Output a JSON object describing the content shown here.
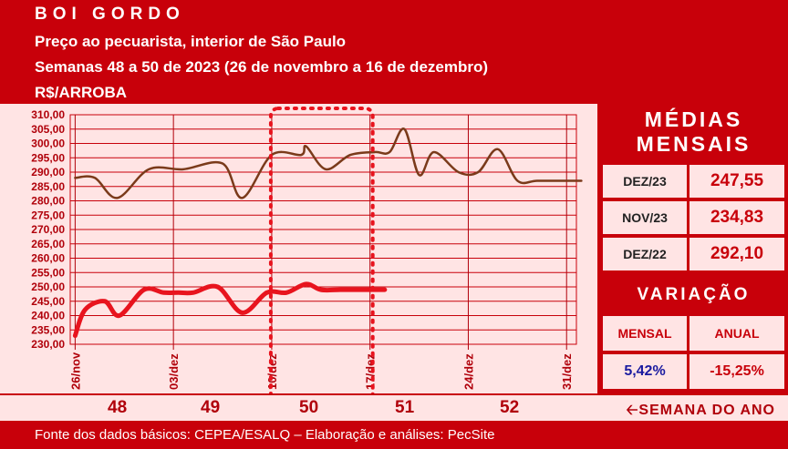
{
  "header": {
    "title": "BOI GORDO",
    "subtitle": "Preço ao pecuarista, interior de São Paulo",
    "period": "Semanas 48 a 50 de 2023 (26 de novembro a 16 de dezembro)",
    "unit": "R$/ARROBA"
  },
  "panel": {
    "medias_title_1": "MÉDIAS",
    "medias_title_2": "MENSAIS",
    "medias": [
      {
        "label": "DEZ/23",
        "value": "247,55"
      },
      {
        "label": "NOV/23",
        "value": "234,83"
      },
      {
        "label": "DEZ/22",
        "value": "292,10"
      }
    ],
    "variacao_title": "VARIAÇÃO",
    "variacao_headers": [
      "MENSAL",
      "ANUAL"
    ],
    "variacao_values": [
      "5,42%",
      "-15,25%"
    ],
    "colors": {
      "mensal": "#1a1aa0",
      "anual": "#c8000a",
      "value": "#c8000a"
    }
  },
  "weeks": {
    "numbers": [
      "48",
      "49",
      "50",
      "51",
      "52"
    ],
    "label": "SEMANA DO ANO",
    "arrow_icon": "arrow-left-icon"
  },
  "footer": "Fonte dos dados básicos: CEPEA/ESALQ – Elaboração e análises: PecSite",
  "chart_data": {
    "type": "line",
    "ylim": [
      230,
      310
    ],
    "yticks": [
      "230,00",
      "235,00",
      "240,00",
      "245,00",
      "250,00",
      "255,00",
      "260,00",
      "265,00",
      "270,00",
      "275,00",
      "280,00",
      "285,00",
      "290,00",
      "295,00",
      "300,00",
      "305,00",
      "310,00"
    ],
    "x_tick_labels": [
      "26/nov",
      "03/dez",
      "10/dez",
      "17/dez",
      "24/dez",
      "31/dez"
    ],
    "x_tick_positions": [
      0,
      1,
      2,
      3,
      4,
      5
    ],
    "series": [
      {
        "color": "#7a3a1a",
        "width": 2.5,
        "x": [
          0,
          0.2,
          0.43,
          0.75,
          1.1,
          1.5,
          1.7,
          2.0,
          2.3,
          2.35,
          2.55,
          2.8,
          3.05,
          3.2,
          3.35,
          3.5,
          3.65,
          3.9,
          4.1,
          4.3,
          4.5,
          4.7,
          5.0,
          5.15
        ],
        "y": [
          288,
          288,
          281,
          291,
          291,
          293,
          281,
          296,
          296,
          299,
          291,
          296,
          297,
          297,
          305,
          289,
          297,
          290,
          290,
          298,
          287,
          287,
          287,
          287
        ]
      },
      {
        "color": "#e8141e",
        "width": 5,
        "x": [
          0,
          0.1,
          0.3,
          0.45,
          0.7,
          0.9,
          1.05,
          1.2,
          1.45,
          1.7,
          1.95,
          2.15,
          2.35,
          2.5,
          2.7,
          3.0,
          3.15
        ],
        "y": [
          233,
          242,
          245,
          240,
          249,
          248,
          248,
          248,
          250,
          241,
          248,
          248,
          251,
          249,
          249,
          249,
          249
        ]
      }
    ],
    "highlight_week": "50",
    "grid": true
  }
}
